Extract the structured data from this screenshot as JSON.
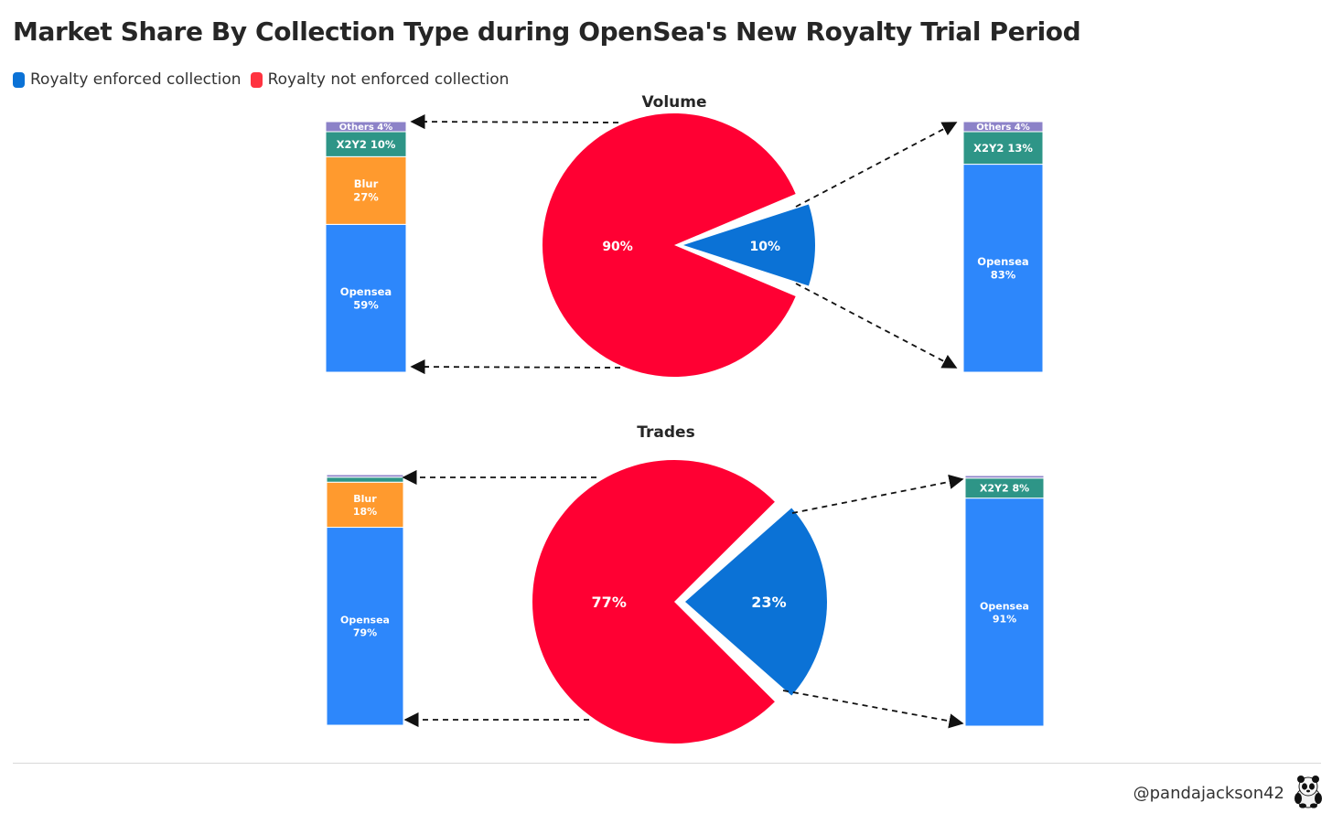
{
  "title": "Market Share By Collection Type during OpenSea's New Royalty Trial Period",
  "legend": [
    {
      "label": "Royalty enforced collection",
      "color": "#0B72D6"
    },
    {
      "label": "Royalty not enforced collection",
      "color": "#FF3340"
    }
  ],
  "footer": {
    "handle": "@pandajackson42",
    "avatar_icon": "panda-avatar-icon"
  },
  "colors": {
    "enforced": "#0B72D6",
    "not_enforced": "#FF0033",
    "opensea": "#2D87FB",
    "blur": "#FF9A2E",
    "x2y2": "#2E9587",
    "others": "#8C82C8"
  },
  "chart_data": [
    {
      "type": "pie",
      "title": "Volume",
      "slices": [
        {
          "label": "90%",
          "value": 90,
          "series": "Royalty not enforced collection"
        },
        {
          "label": "10%",
          "value": 10,
          "series": "Royalty enforced collection"
        }
      ],
      "breakdowns": [
        {
          "type": "bar",
          "stacked": true,
          "of": "Royalty not enforced collection",
          "segments": [
            {
              "name": "Opensea",
              "value": 59,
              "label": [
                "Opensea",
                "59%"
              ],
              "color": "opensea"
            },
            {
              "name": "Blur",
              "value": 27,
              "label": [
                "Blur",
                "27%"
              ],
              "color": "blur"
            },
            {
              "name": "X2Y2",
              "value": 10,
              "label": [
                "X2Y2 10%"
              ],
              "color": "x2y2"
            },
            {
              "name": "Others",
              "value": 4,
              "label": [
                "Others 4%"
              ],
              "color": "others"
            }
          ]
        },
        {
          "type": "bar",
          "stacked": true,
          "of": "Royalty enforced collection",
          "segments": [
            {
              "name": "Opensea",
              "value": 83,
              "label": [
                "Opensea",
                "83%"
              ],
              "color": "opensea"
            },
            {
              "name": "X2Y2",
              "value": 13,
              "label": [
                "X2Y2 13%"
              ],
              "color": "x2y2"
            },
            {
              "name": "Others",
              "value": 4,
              "label": [
                "Others 4%"
              ],
              "color": "others"
            }
          ]
        }
      ]
    },
    {
      "type": "pie",
      "title": "Trades",
      "slices": [
        {
          "label": "77%",
          "value": 77,
          "series": "Royalty not enforced collection"
        },
        {
          "label": "23%",
          "value": 23,
          "series": "Royalty enforced collection"
        }
      ],
      "breakdowns": [
        {
          "type": "bar",
          "stacked": true,
          "of": "Royalty not enforced collection",
          "segments": [
            {
              "name": "Opensea",
              "value": 79,
              "label": [
                "Opensea",
                "79%"
              ],
              "color": "opensea"
            },
            {
              "name": "Blur",
              "value": 18,
              "label": [
                "Blur",
                "18%"
              ],
              "color": "blur"
            },
            {
              "name": "X2Y2",
              "value": 2,
              "label": [],
              "color": "x2y2"
            },
            {
              "name": "Others",
              "value": 1,
              "label": [],
              "color": "others"
            }
          ]
        },
        {
          "type": "bar",
          "stacked": true,
          "of": "Royalty enforced collection",
          "segments": [
            {
              "name": "Opensea",
              "value": 91,
              "label": [
                "Opensea",
                "91%"
              ],
              "color": "opensea"
            },
            {
              "name": "X2Y2",
              "value": 8,
              "label": [
                "X2Y2 8%"
              ],
              "color": "x2y2"
            },
            {
              "name": "Others",
              "value": 1,
              "label": [],
              "color": "others"
            }
          ]
        }
      ]
    }
  ]
}
